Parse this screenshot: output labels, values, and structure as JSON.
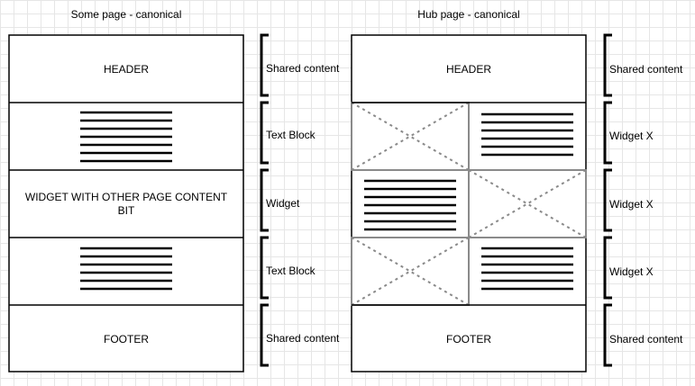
{
  "left_page": {
    "title": "Some page - canonical",
    "header": "HEADER",
    "widget_line1": "WIDGET WITH OTHER PAGE CONTENT",
    "widget_line2": "BIT",
    "footer": "FOOTER",
    "annotations": [
      "Shared content",
      "Text Block",
      "Widget",
      "Text Block",
      "Shared content"
    ]
  },
  "right_page": {
    "title": "Hub page - canonical",
    "header": "HEADER",
    "footer": "FOOTER",
    "annotations": [
      "Shared content",
      "Widget X",
      "Widget X",
      "Widget X",
      "Shared content"
    ]
  }
}
